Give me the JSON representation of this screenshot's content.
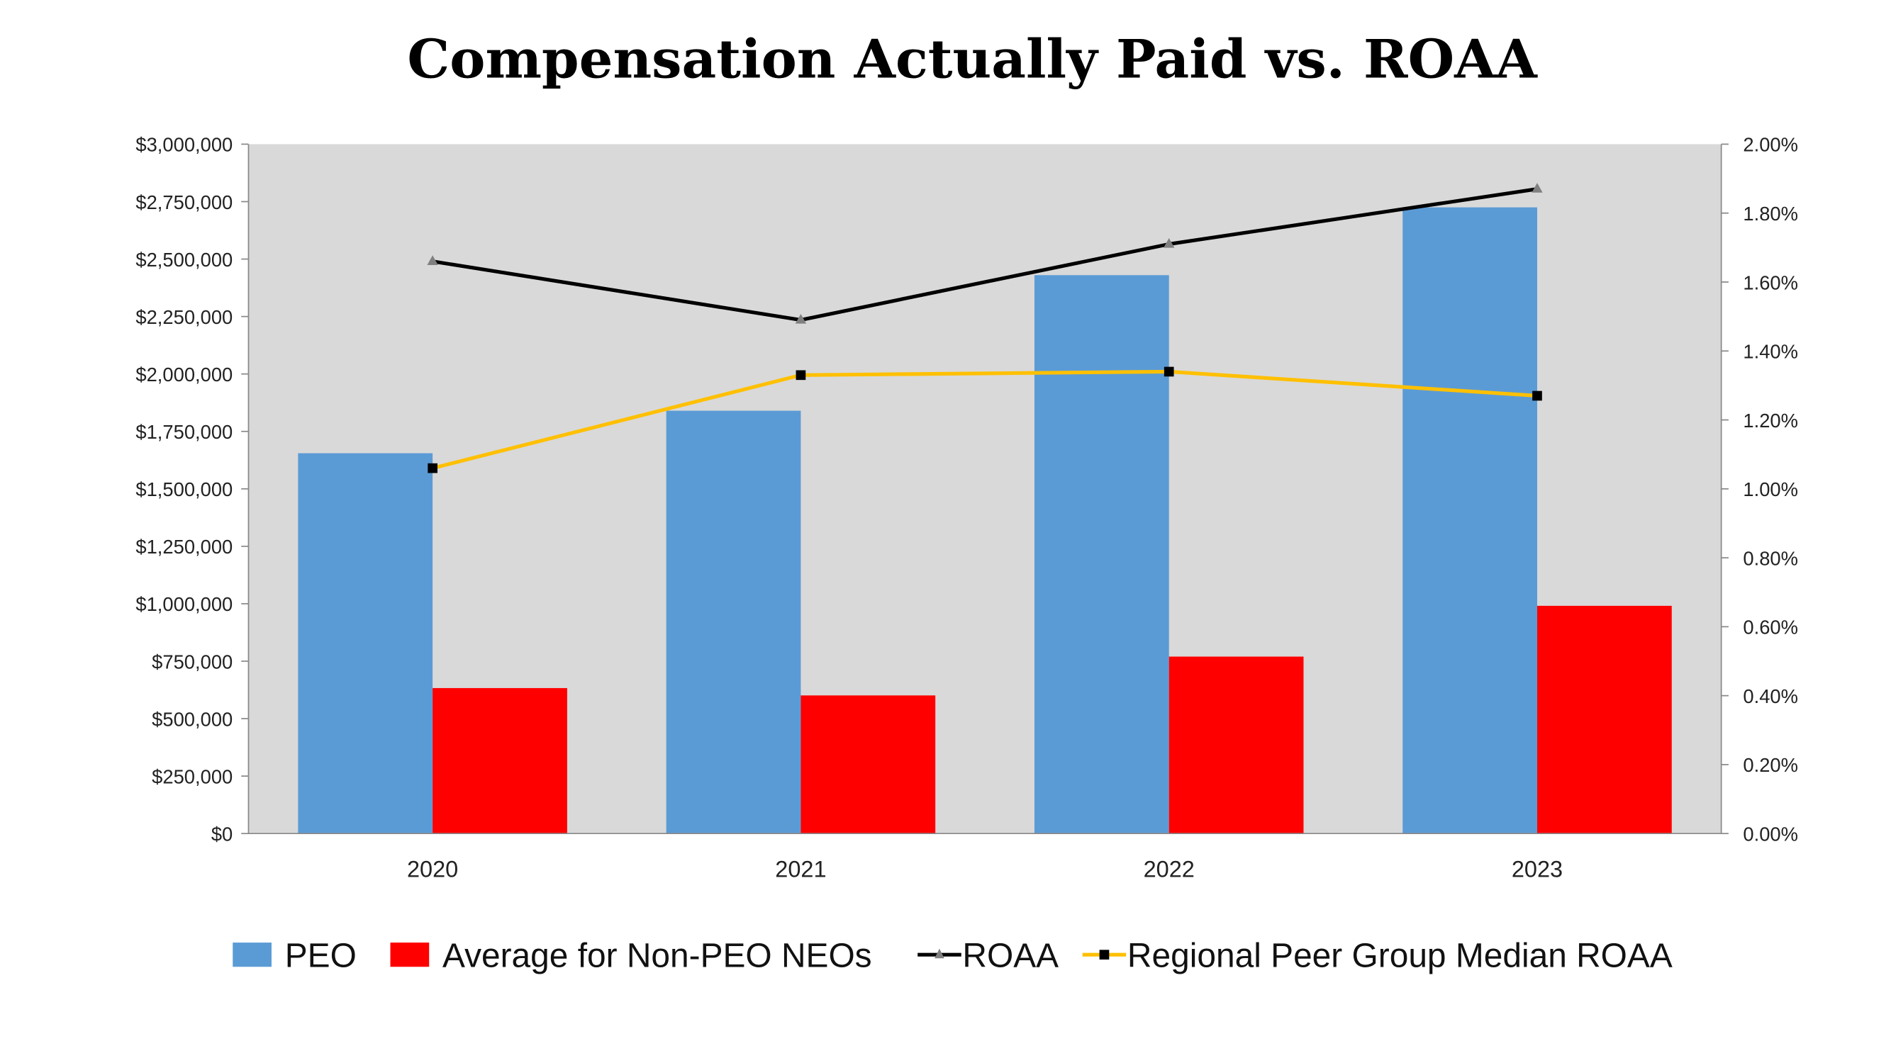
{
  "chart_data": {
    "type": "bar",
    "title": "Compensation Actually Paid vs. ROAA",
    "categories": [
      "2020",
      "2021",
      "2022",
      "2023"
    ],
    "series": [
      {
        "name": "PEO",
        "kind": "bar",
        "axis": "left",
        "color": "#5B9BD5",
        "values": [
          1655000,
          1840000,
          2430000,
          2725000
        ]
      },
      {
        "name": "Average for Non-PEO NEOs",
        "kind": "bar",
        "axis": "left",
        "color": "#FF0000",
        "values": [
          633000,
          601000,
          770000,
          991000
        ]
      },
      {
        "name": "ROAA",
        "kind": "line",
        "axis": "right",
        "color": "#000000",
        "marker": "triangle",
        "marker_color": "#808080",
        "values": [
          1.66,
          1.49,
          1.71,
          1.87
        ]
      },
      {
        "name": "Regional Peer Group Median ROAA",
        "kind": "line",
        "axis": "right",
        "color": "#FFC000",
        "marker": "square",
        "marker_color": "#000000",
        "values": [
          1.06,
          1.33,
          1.34,
          1.27
        ]
      }
    ],
    "left_axis": {
      "ylim": [
        0,
        3000000
      ],
      "ticks": [
        "$0",
        "$250,000",
        "$500,000",
        "$750,000",
        "$1,000,000",
        "$1,250,000",
        "$1,500,000",
        "$1,750,000",
        "$2,000,000",
        "$2,250,000",
        "$2,500,000",
        "$2,750,000",
        "$3,000,000"
      ]
    },
    "right_axis": {
      "ylim": [
        0,
        2.0
      ],
      "unit": "%",
      "ticks": [
        "0.00%",
        "0.20%",
        "0.40%",
        "0.60%",
        "0.80%",
        "1.00%",
        "1.20%",
        "1.40%",
        "1.60%",
        "1.80%",
        "2.00%"
      ]
    },
    "plot_background": "#D9D9D9",
    "grid": false,
    "legend_position": "bottom"
  }
}
